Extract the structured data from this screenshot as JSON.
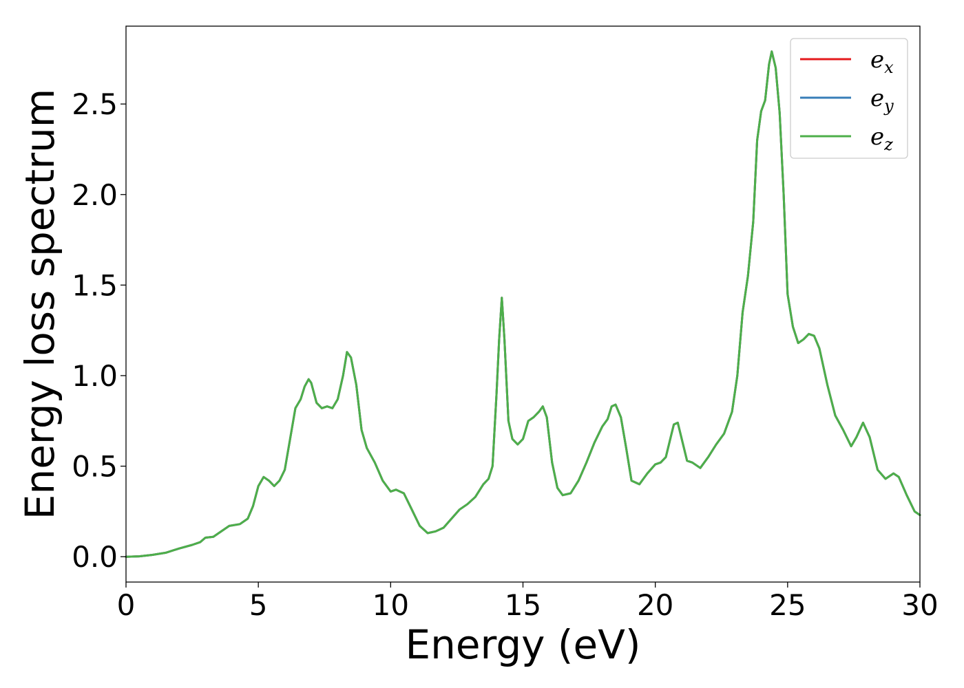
{
  "chart_data": {
    "type": "line",
    "title": "",
    "xlabel": "Energy (eV)",
    "ylabel": "Energy loss spectrum",
    "xlim": [
      0,
      30
    ],
    "ylim": [
      -0.14,
      2.93
    ],
    "xticks": [
      0,
      5,
      10,
      15,
      20,
      25,
      30
    ],
    "xtick_labels": [
      "0",
      "5",
      "10",
      "15",
      "20",
      "25",
      "30"
    ],
    "yticks": [
      0.0,
      0.5,
      1.0,
      1.5,
      2.0,
      2.5
    ],
    "ytick_labels": [
      "0.0",
      "0.5",
      "1.0",
      "1.5",
      "2.0",
      "2.5"
    ],
    "grid": false,
    "legend_position": "top-right",
    "x": [
      0,
      0.5,
      1.0,
      1.5,
      2.0,
      2.5,
      2.8,
      3.0,
      3.3,
      3.6,
      3.9,
      4.3,
      4.6,
      4.8,
      5.0,
      5.2,
      5.4,
      5.6,
      5.8,
      6.0,
      6.2,
      6.4,
      6.6,
      6.75,
      6.9,
      7.0,
      7.2,
      7.4,
      7.6,
      7.8,
      8.0,
      8.2,
      8.35,
      8.5,
      8.7,
      8.9,
      9.1,
      9.4,
      9.7,
      10.0,
      10.2,
      10.5,
      10.8,
      11.1,
      11.4,
      11.7,
      12.0,
      12.3,
      12.6,
      12.9,
      13.2,
      13.5,
      13.7,
      13.85,
      14.0,
      14.1,
      14.2,
      14.3,
      14.45,
      14.6,
      14.8,
      15.0,
      15.2,
      15.4,
      15.6,
      15.75,
      15.9,
      16.1,
      16.3,
      16.5,
      16.8,
      17.1,
      17.4,
      17.7,
      18.0,
      18.2,
      18.35,
      18.5,
      18.7,
      18.9,
      19.1,
      19.4,
      19.7,
      20.0,
      20.2,
      20.4,
      20.6,
      20.7,
      20.85,
      21.0,
      21.2,
      21.4,
      21.7,
      22.0,
      22.3,
      22.6,
      22.9,
      23.1,
      23.3,
      23.5,
      23.7,
      23.85,
      24.0,
      24.15,
      24.3,
      24.4,
      24.55,
      24.7,
      24.85,
      25.0,
      25.2,
      25.4,
      25.6,
      25.8,
      26.0,
      26.2,
      26.5,
      26.8,
      27.1,
      27.4,
      27.6,
      27.85,
      28.1,
      28.4,
      28.7,
      29.0,
      29.2,
      29.5,
      29.8,
      30.0
    ],
    "series": [
      {
        "name": "e_x",
        "color": "#e41a1c",
        "values": [
          0.0,
          0.002,
          0.01,
          0.022,
          0.045,
          0.065,
          0.08,
          0.105,
          0.11,
          0.14,
          0.17,
          0.18,
          0.21,
          0.28,
          0.39,
          0.44,
          0.42,
          0.39,
          0.42,
          0.48,
          0.65,
          0.82,
          0.87,
          0.94,
          0.98,
          0.96,
          0.85,
          0.82,
          0.83,
          0.82,
          0.87,
          1.0,
          1.13,
          1.1,
          0.95,
          0.7,
          0.6,
          0.52,
          0.42,
          0.36,
          0.37,
          0.35,
          0.26,
          0.17,
          0.13,
          0.14,
          0.16,
          0.21,
          0.26,
          0.29,
          0.33,
          0.4,
          0.43,
          0.5,
          0.9,
          1.2,
          1.43,
          1.2,
          0.75,
          0.65,
          0.62,
          0.65,
          0.75,
          0.77,
          0.8,
          0.83,
          0.77,
          0.52,
          0.38,
          0.34,
          0.35,
          0.42,
          0.52,
          0.63,
          0.72,
          0.76,
          0.83,
          0.84,
          0.77,
          0.6,
          0.42,
          0.4,
          0.46,
          0.51,
          0.52,
          0.55,
          0.67,
          0.73,
          0.74,
          0.65,
          0.53,
          0.52,
          0.49,
          0.55,
          0.62,
          0.68,
          0.8,
          1.0,
          1.35,
          1.55,
          1.85,
          2.3,
          2.46,
          2.52,
          2.72,
          2.79,
          2.7,
          2.45,
          2.0,
          1.45,
          1.27,
          1.18,
          1.2,
          1.23,
          1.22,
          1.15,
          0.95,
          0.78,
          0.7,
          0.61,
          0.66,
          0.74,
          0.66,
          0.48,
          0.43,
          0.46,
          0.44,
          0.34,
          0.25,
          0.23
        ]
      },
      {
        "name": "e_y",
        "color": "#377eb8",
        "values": [
          0.0,
          0.002,
          0.01,
          0.022,
          0.045,
          0.065,
          0.08,
          0.105,
          0.11,
          0.14,
          0.17,
          0.18,
          0.21,
          0.28,
          0.39,
          0.44,
          0.42,
          0.39,
          0.42,
          0.48,
          0.65,
          0.82,
          0.87,
          0.94,
          0.98,
          0.96,
          0.85,
          0.82,
          0.83,
          0.82,
          0.87,
          1.0,
          1.13,
          1.1,
          0.95,
          0.7,
          0.6,
          0.52,
          0.42,
          0.36,
          0.37,
          0.35,
          0.26,
          0.17,
          0.13,
          0.14,
          0.16,
          0.21,
          0.26,
          0.29,
          0.33,
          0.4,
          0.43,
          0.5,
          0.9,
          1.2,
          1.43,
          1.2,
          0.75,
          0.65,
          0.62,
          0.65,
          0.75,
          0.77,
          0.8,
          0.83,
          0.77,
          0.52,
          0.38,
          0.34,
          0.35,
          0.42,
          0.52,
          0.63,
          0.72,
          0.76,
          0.83,
          0.84,
          0.77,
          0.6,
          0.42,
          0.4,
          0.46,
          0.51,
          0.52,
          0.55,
          0.67,
          0.73,
          0.74,
          0.65,
          0.53,
          0.52,
          0.49,
          0.55,
          0.62,
          0.68,
          0.8,
          1.0,
          1.35,
          1.55,
          1.85,
          2.3,
          2.46,
          2.52,
          2.72,
          2.79,
          2.7,
          2.45,
          2.0,
          1.45,
          1.27,
          1.18,
          1.2,
          1.23,
          1.22,
          1.15,
          0.95,
          0.78,
          0.7,
          0.61,
          0.66,
          0.74,
          0.66,
          0.48,
          0.43,
          0.46,
          0.44,
          0.34,
          0.25,
          0.23
        ]
      },
      {
        "name": "e_z",
        "color": "#4daf4a",
        "values": [
          0.0,
          0.002,
          0.01,
          0.022,
          0.045,
          0.065,
          0.08,
          0.105,
          0.11,
          0.14,
          0.17,
          0.18,
          0.21,
          0.28,
          0.39,
          0.44,
          0.42,
          0.39,
          0.42,
          0.48,
          0.65,
          0.82,
          0.87,
          0.94,
          0.98,
          0.96,
          0.85,
          0.82,
          0.83,
          0.82,
          0.87,
          1.0,
          1.13,
          1.1,
          0.95,
          0.7,
          0.6,
          0.52,
          0.42,
          0.36,
          0.37,
          0.35,
          0.26,
          0.17,
          0.13,
          0.14,
          0.16,
          0.21,
          0.26,
          0.29,
          0.33,
          0.4,
          0.43,
          0.5,
          0.9,
          1.2,
          1.43,
          1.2,
          0.75,
          0.65,
          0.62,
          0.65,
          0.75,
          0.77,
          0.8,
          0.83,
          0.77,
          0.52,
          0.38,
          0.34,
          0.35,
          0.42,
          0.52,
          0.63,
          0.72,
          0.76,
          0.83,
          0.84,
          0.77,
          0.6,
          0.42,
          0.4,
          0.46,
          0.51,
          0.52,
          0.55,
          0.67,
          0.73,
          0.74,
          0.65,
          0.53,
          0.52,
          0.49,
          0.55,
          0.62,
          0.68,
          0.8,
          1.0,
          1.35,
          1.55,
          1.85,
          2.3,
          2.46,
          2.52,
          2.72,
          2.79,
          2.7,
          2.45,
          2.0,
          1.45,
          1.27,
          1.18,
          1.2,
          1.23,
          1.22,
          1.15,
          0.95,
          0.78,
          0.7,
          0.61,
          0.66,
          0.74,
          0.66,
          0.48,
          0.43,
          0.46,
          0.44,
          0.34,
          0.25,
          0.23
        ]
      }
    ],
    "legend": [
      {
        "base": "e",
        "sub": "x",
        "color": "#e41a1c"
      },
      {
        "base": "e",
        "sub": "y",
        "color": "#377eb8"
      },
      {
        "base": "e",
        "sub": "z",
        "color": "#4daf4a"
      }
    ]
  }
}
